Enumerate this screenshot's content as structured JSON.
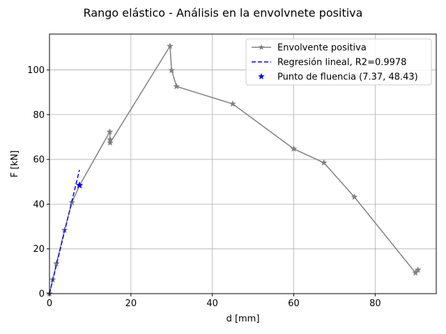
{
  "chart_data": {
    "type": "line",
    "title": "Rango elástico - Análisis en la envolvnete positiva",
    "xlabel": "d [mm]",
    "ylabel": "F [kN]",
    "xlim": [
      0,
      95
    ],
    "ylim": [
      0,
      116
    ],
    "xticks": [
      0,
      20,
      40,
      60,
      80
    ],
    "yticks": [
      0,
      20,
      40,
      60,
      80,
      100
    ],
    "grid": true,
    "legend_position": "top-right",
    "series": [
      {
        "name": "Envolvente positiva",
        "style": "solid-star-markers",
        "color": "#808080",
        "x": [
          0.0,
          0.8,
          1.7,
          3.7,
          5.5,
          7.4,
          14.8,
          14.9,
          14.9,
          29.6,
          30.0,
          31.2,
          45.0,
          60.0,
          67.4,
          74.9,
          89.9,
          90.5
        ],
        "y": [
          0.0,
          6.2,
          13.4,
          28.4,
          40.7,
          48.4,
          72.3,
          68.8,
          67.4,
          110.6,
          99.8,
          92.6,
          84.8,
          64.7,
          58.5,
          43.2,
          9.3,
          10.6
        ]
      },
      {
        "name": "Regresión lineal, R2=0.9978",
        "style": "dashed",
        "color": "#0000ff",
        "x": [
          0.0,
          7.37
        ],
        "y": [
          0.0,
          55.3
        ]
      },
      {
        "name": "Punto de fluencia (7.37, 48.43)",
        "style": "star-marker",
        "color": "#0000ff",
        "x": [
          7.37
        ],
        "y": [
          48.43
        ]
      }
    ]
  }
}
